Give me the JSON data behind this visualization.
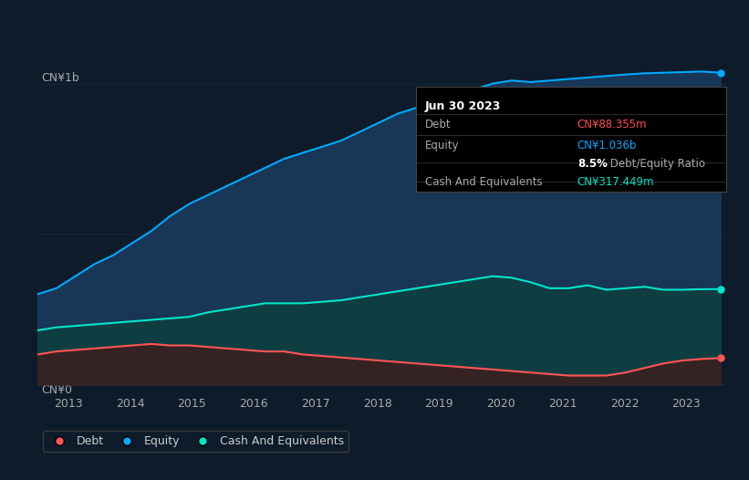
{
  "background_color": "#0d1b2a",
  "plot_bg_color": "#0d1b2a",
  "title_box": {
    "date": "Jun 30 2023",
    "debt_label": "Debt",
    "debt_value": "CN¥88.355m",
    "debt_color": "#ff4d4d",
    "equity_label": "Equity",
    "equity_value": "CN¥1.036b",
    "equity_color": "#00aaff",
    "ratio_bold": "8.5%",
    "ratio_rest": " Debt/Equity Ratio",
    "cash_label": "Cash And Equivalents",
    "cash_value": "CN¥317.449m",
    "cash_color": "#00e5cc",
    "box_bg": "#000000",
    "box_text_color": "#cccccc"
  },
  "y_label_top": "CN¥1b",
  "y_label_bottom": "CN¥0",
  "x_ticks": [
    "2013",
    "2014",
    "2015",
    "2016",
    "2017",
    "2018",
    "2019",
    "2020",
    "2021",
    "2022",
    "2023"
  ],
  "line_color_equity": "#00aaff",
  "line_color_cash": "#00e5cc",
  "line_color_debt": "#ff5555",
  "fill_color_equity": "#1a3a5c",
  "fill_color_cash": "#0d4040",
  "fill_color_debt": "#3a2020",
  "legend": [
    {
      "label": "Debt",
      "color": "#ff5555"
    },
    {
      "label": "Equity",
      "color": "#00aaff"
    },
    {
      "label": "Cash And Equivalents",
      "color": "#00e5cc"
    }
  ],
  "equity": [
    0.3,
    0.32,
    0.36,
    0.4,
    0.43,
    0.47,
    0.51,
    0.56,
    0.6,
    0.63,
    0.66,
    0.69,
    0.72,
    0.75,
    0.77,
    0.79,
    0.81,
    0.84,
    0.87,
    0.9,
    0.92,
    0.94,
    0.96,
    0.98,
    1.0,
    1.01,
    1.005,
    1.01,
    1.015,
    1.02,
    1.025,
    1.03,
    1.034,
    1.036,
    1.038,
    1.04,
    1.036
  ],
  "cash": [
    0.18,
    0.19,
    0.195,
    0.2,
    0.205,
    0.21,
    0.215,
    0.22,
    0.225,
    0.24,
    0.25,
    0.26,
    0.27,
    0.27,
    0.27,
    0.275,
    0.28,
    0.29,
    0.3,
    0.31,
    0.32,
    0.33,
    0.34,
    0.35,
    0.36,
    0.355,
    0.34,
    0.32,
    0.32,
    0.33,
    0.315,
    0.32,
    0.325,
    0.315,
    0.315,
    0.317,
    0.317
  ],
  "debt": [
    0.1,
    0.11,
    0.115,
    0.12,
    0.125,
    0.13,
    0.135,
    0.13,
    0.13,
    0.125,
    0.12,
    0.115,
    0.11,
    0.11,
    0.1,
    0.095,
    0.09,
    0.085,
    0.08,
    0.075,
    0.07,
    0.065,
    0.06,
    0.055,
    0.05,
    0.045,
    0.04,
    0.035,
    0.03,
    0.03,
    0.03,
    0.04,
    0.055,
    0.07,
    0.08,
    0.085,
    0.088
  ]
}
